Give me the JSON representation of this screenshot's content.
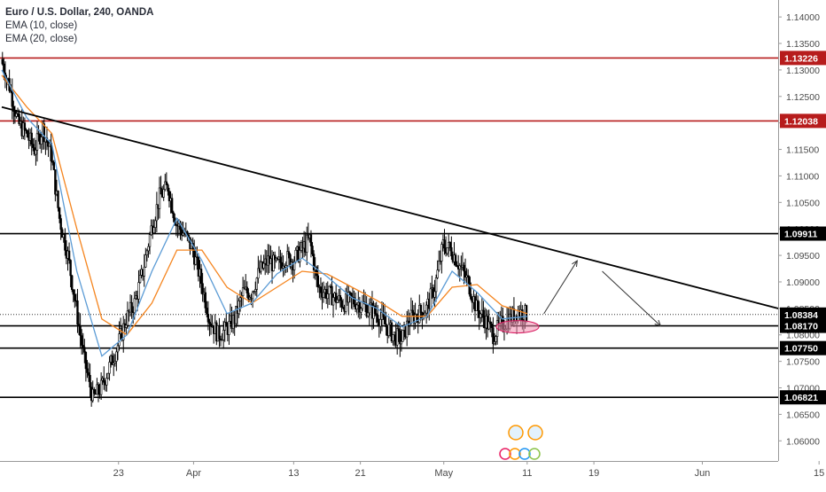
{
  "legend": {
    "title": "Euro / U.S. Dollar, 240, OANDA",
    "ema_fast": "EMA (10, close)",
    "ema_slow": "EMA (20, close)"
  },
  "colors": {
    "candle": "#000000",
    "ema_fast": "#5b9bd5",
    "ema_slow": "#f5851f",
    "resistance": "#b71c1c",
    "support": "#000000",
    "trendline": "#000000",
    "highlight": "#f48fb1"
  },
  "chart_data": {
    "type": "candlestick",
    "symbol": "EURUSD",
    "timeframe": "240",
    "y_axis": {
      "range": [
        1.0562,
        1.1432
      ],
      "ticks": [
        "1.14000",
        "1.13500",
        "1.13000",
        "1.12500",
        "1.12000",
        "1.11500",
        "1.11000",
        "1.10500",
        "1.10000",
        "1.09500",
        "1.09000",
        "1.08500",
        "1.08000",
        "1.07500",
        "1.07000",
        "1.06500",
        "1.06000"
      ],
      "tick_values": [
        1.14,
        1.135,
        1.13,
        1.125,
        1.12,
        1.115,
        1.11,
        1.105,
        1.1,
        1.095,
        1.09,
        1.085,
        1.08,
        1.075,
        1.07,
        1.065,
        1.06
      ]
    },
    "x_axis": {
      "ticks": [
        "23",
        "Apr",
        "13",
        "21",
        "May",
        "11",
        "19",
        "Jun",
        "15"
      ],
      "tick_dates": [
        "2020-03-23",
        "2020-04-01",
        "2020-04-13",
        "2020-04-21",
        "2020-05-01",
        "2020-05-11",
        "2020-05-19",
        "2020-06-01",
        "2020-06-15"
      ]
    },
    "price_levels": [
      {
        "label": "1.13226",
        "value": 1.13226,
        "kind": "resistance"
      },
      {
        "label": "1.12038",
        "value": 1.12038,
        "kind": "resistance"
      },
      {
        "label": "1.09911",
        "value": 1.09911,
        "kind": "support"
      },
      {
        "label": "1.08384",
        "value": 1.08384,
        "kind": "current"
      },
      {
        "label": "1.08170",
        "value": 1.0817,
        "kind": "support"
      },
      {
        "label": "1.07750",
        "value": 1.0775,
        "kind": "support"
      },
      {
        "label": "1.06821",
        "value": 1.06821,
        "kind": "support"
      }
    ],
    "trendline": {
      "start": {
        "date": "2020-03-09",
        "price": 1.123
      },
      "end": {
        "date": "2020-06-13",
        "price": 1.0838
      }
    },
    "close_path": [
      [
        "2020-03-09",
        1.132
      ],
      [
        "2020-03-10",
        1.127
      ],
      [
        "2020-03-11",
        1.12
      ],
      [
        "2020-03-12",
        1.118
      ],
      [
        "2020-03-13",
        1.115
      ],
      [
        "2020-03-14",
        1.119
      ],
      [
        "2020-03-15",
        1.114
      ],
      [
        "2020-03-16",
        1.102
      ],
      [
        "2020-03-17",
        1.095
      ],
      [
        "2020-03-18",
        1.085
      ],
      [
        "2020-03-19",
        1.075
      ],
      [
        "2020-03-20",
        1.068
      ],
      [
        "2020-03-21",
        1.07
      ],
      [
        "2020-03-22",
        1.074
      ],
      [
        "2020-03-23",
        1.078
      ],
      [
        "2020-03-24",
        1.083
      ],
      [
        "2020-03-25",
        1.086
      ],
      [
        "2020-03-26",
        1.092
      ],
      [
        "2020-03-27",
        1.1
      ],
      [
        "2020-03-28",
        1.106
      ],
      [
        "2020-03-29",
        1.108
      ],
      [
        "2020-03-30",
        1.101
      ],
      [
        "2020-03-31",
        1.099
      ],
      [
        "2020-04-01",
        1.096
      ],
      [
        "2020-04-02",
        1.09
      ],
      [
        "2020-04-03",
        1.083
      ],
      [
        "2020-04-04",
        1.08
      ],
      [
        "2020-04-05",
        1.081
      ],
      [
        "2020-04-06",
        1.083
      ],
      [
        "2020-04-07",
        1.088
      ],
      [
        "2020-04-08",
        1.088
      ],
      [
        "2020-04-09",
        1.092
      ],
      [
        "2020-04-10",
        1.094
      ],
      [
        "2020-04-11",
        1.093
      ],
      [
        "2020-04-12",
        1.0945
      ],
      [
        "2020-04-13",
        1.094
      ],
      [
        "2020-04-14",
        1.096
      ],
      [
        "2020-04-15",
        1.098
      ],
      [
        "2020-04-16",
        1.089
      ],
      [
        "2020-04-17",
        1.088
      ],
      [
        "2020-04-18",
        1.087
      ],
      [
        "2020-04-19",
        1.086
      ],
      [
        "2020-04-20",
        1.0865
      ],
      [
        "2020-04-21",
        1.086
      ],
      [
        "2020-04-22",
        1.085
      ],
      [
        "2020-04-23",
        1.084
      ],
      [
        "2020-04-24",
        1.082
      ],
      [
        "2020-04-25",
        1.08
      ],
      [
        "2020-04-26",
        1.079
      ],
      [
        "2020-04-27",
        1.083
      ],
      [
        "2020-04-28",
        1.084
      ],
      [
        "2020-04-29",
        1.085
      ],
      [
        "2020-04-30",
        1.089
      ],
      [
        "2020-05-01",
        1.097
      ],
      [
        "2020-05-02",
        1.096
      ],
      [
        "2020-05-03",
        1.093
      ],
      [
        "2020-05-04",
        1.09
      ],
      [
        "2020-05-05",
        1.085
      ],
      [
        "2020-05-06",
        1.083
      ],
      [
        "2020-05-07",
        1.08
      ],
      [
        "2020-05-08",
        1.082
      ],
      [
        "2020-05-09",
        1.083
      ],
      [
        "2020-05-10",
        1.0845
      ],
      [
        "2020-05-11",
        1.0838
      ]
    ],
    "ema_fast_path": [
      [
        "2020-03-09",
        1.13
      ],
      [
        "2020-03-12",
        1.121
      ],
      [
        "2020-03-15",
        1.116
      ],
      [
        "2020-03-18",
        1.092
      ],
      [
        "2020-03-21",
        1.076
      ],
      [
        "2020-03-24",
        1.08
      ],
      [
        "2020-03-27",
        1.092
      ],
      [
        "2020-03-30",
        1.102
      ],
      [
        "2020-04-02",
        1.094
      ],
      [
        "2020-04-05",
        1.084
      ],
      [
        "2020-04-08",
        1.086
      ],
      [
        "2020-04-11",
        1.0915
      ],
      [
        "2020-04-14",
        1.0945
      ],
      [
        "2020-04-17",
        1.091
      ],
      [
        "2020-04-20",
        1.087
      ],
      [
        "2020-04-23",
        1.085
      ],
      [
        "2020-04-26",
        1.0815
      ],
      [
        "2020-04-29",
        1.0835
      ],
      [
        "2020-05-02",
        1.092
      ],
      [
        "2020-05-05",
        1.088
      ],
      [
        "2020-05-08",
        1.083
      ],
      [
        "2020-05-11",
        1.0835
      ]
    ],
    "ema_slow_path": [
      [
        "2020-03-09",
        1.129
      ],
      [
        "2020-03-12",
        1.123
      ],
      [
        "2020-03-15",
        1.118
      ],
      [
        "2020-03-18",
        1.1
      ],
      [
        "2020-03-21",
        1.083
      ],
      [
        "2020-03-24",
        1.08
      ],
      [
        "2020-03-27",
        1.086
      ],
      [
        "2020-03-30",
        1.096
      ],
      [
        "2020-04-02",
        1.096
      ],
      [
        "2020-04-05",
        1.089
      ],
      [
        "2020-04-08",
        1.086
      ],
      [
        "2020-04-11",
        1.089
      ],
      [
        "2020-04-14",
        1.092
      ],
      [
        "2020-04-17",
        1.0915
      ],
      [
        "2020-04-20",
        1.089
      ],
      [
        "2020-04-23",
        1.0865
      ],
      [
        "2020-04-26",
        1.0835
      ],
      [
        "2020-04-29",
        1.0835
      ],
      [
        "2020-05-02",
        1.089
      ],
      [
        "2020-05-05",
        1.0895
      ],
      [
        "2020-05-08",
        1.0855
      ],
      [
        "2020-05-11",
        1.084
      ]
    ],
    "arrows": [
      {
        "from": {
          "date": "2020-05-13",
          "price": 1.084
        },
        "to": {
          "date": "2020-05-17",
          "price": 1.094
        }
      },
      {
        "from": {
          "date": "2020-05-20",
          "price": 1.092
        },
        "to": {
          "date": "2020-05-27",
          "price": 1.0817
        }
      }
    ],
    "highlight_zone": {
      "date": "2020-05-09",
      "price": 1.0817
    },
    "grid": false
  }
}
